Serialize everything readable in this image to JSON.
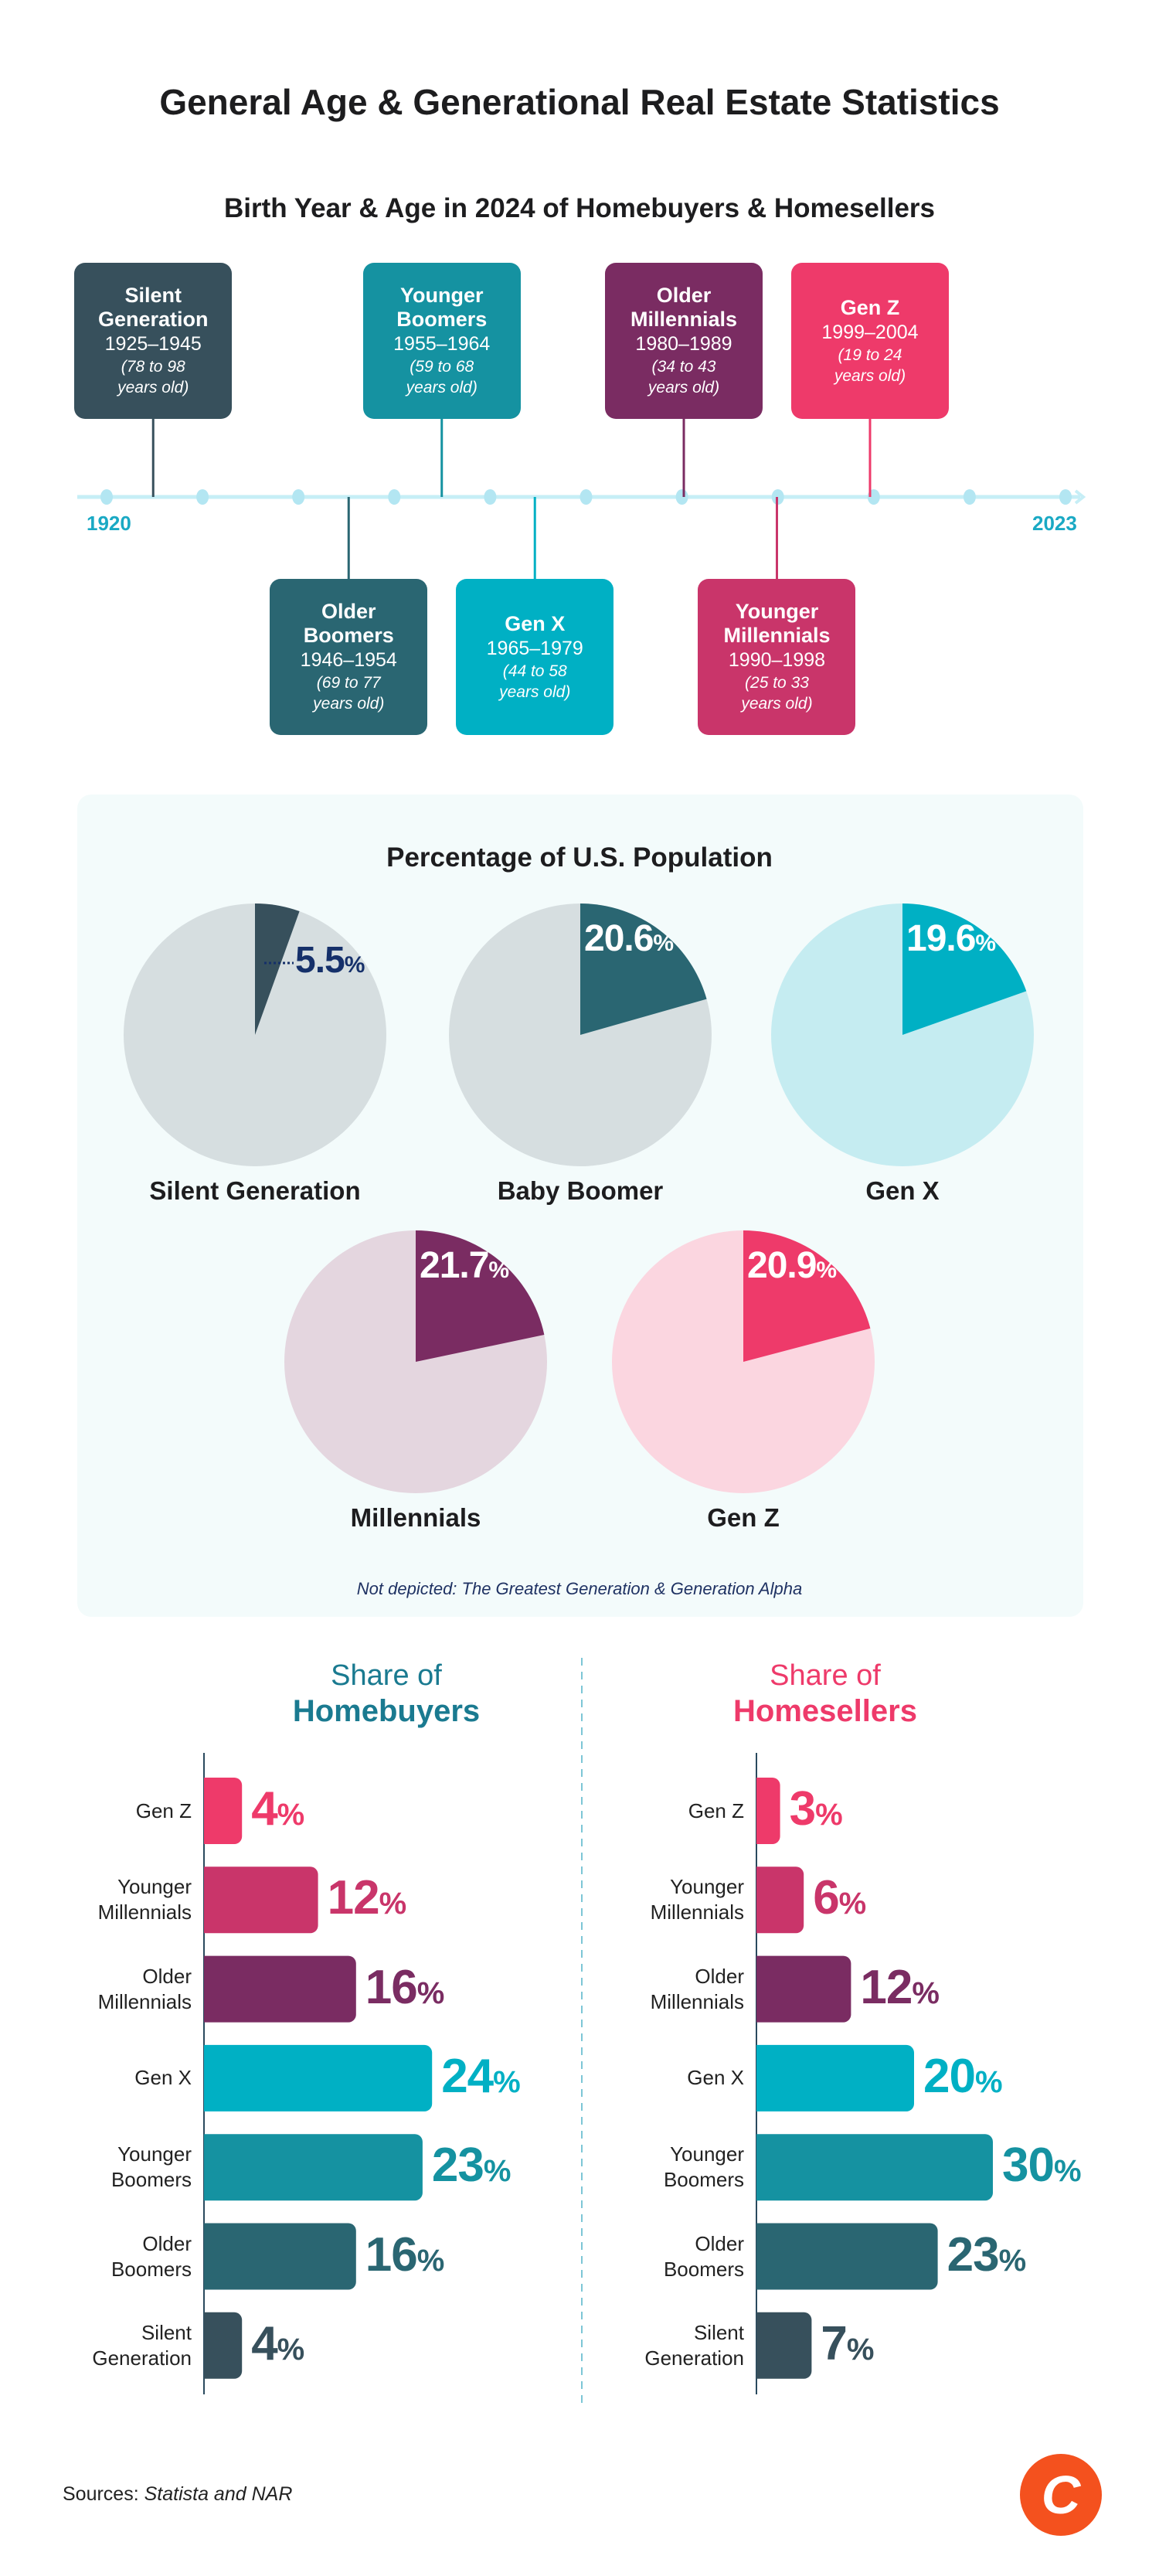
{
  "title": "General Age & Generational Real Estate Statistics",
  "timeline": {
    "title": "Birth Year & Age in 2024 of Homebuyers & Homesellers",
    "start_label": "1920",
    "end_label": "2023",
    "range": [
      1920,
      2023
    ],
    "generations": [
      {
        "name": [
          "Silent",
          "Generation"
        ],
        "years": "1925–1945",
        "ages": [
          "(78 to 98",
          "years old)"
        ],
        "start": 1925,
        "position": "above",
        "color": "#37505c"
      },
      {
        "name": [
          "Older",
          "Boomers"
        ],
        "years": "1946–1954",
        "ages": [
          "(69 to 77",
          "years old)"
        ],
        "start": 1946,
        "position": "below",
        "color": "#2a6672"
      },
      {
        "name": [
          "Younger",
          "Boomers"
        ],
        "years": "1955–1964",
        "ages": [
          "(59 to 68",
          "years old)"
        ],
        "start": 1956,
        "position": "above",
        "color": "#1592a1"
      },
      {
        "name": [
          "Gen X"
        ],
        "years": "1965–1979",
        "ages": [
          "(44 to 58",
          "years old)"
        ],
        "start": 1966,
        "position": "below",
        "color": "#00b0c4"
      },
      {
        "name": [
          "Older",
          "Millennials"
        ],
        "years": "1980–1989",
        "ages": [
          "(34 to 43",
          "years old)"
        ],
        "start": 1982,
        "position": "above",
        "color": "#7a2c62"
      },
      {
        "name": [
          "Younger",
          "Millennials"
        ],
        "years": "1990–1998",
        "ages": [
          "(25 to 33",
          "years old)"
        ],
        "start": 1992,
        "position": "below",
        "color": "#c9356a"
      },
      {
        "name": [
          "Gen Z"
        ],
        "years": "1999–2004",
        "ages": [
          "(19 to 24",
          "years old)"
        ],
        "start": 2002,
        "position": "above",
        "color": "#ee3a6a"
      }
    ]
  },
  "chart_data": [
    {
      "type": "pie",
      "title": "Percentage of U.S. Population",
      "note": "Not depicted: The Greatest Generation & Generation Alpha",
      "pies": [
        {
          "name": "Silent Generation",
          "value": 5.5,
          "label": "5.5",
          "color": "#37505c",
          "bg": "#d6dee0",
          "label_color": "#15306a",
          "label_outside": true
        },
        {
          "name": "Baby Boomer",
          "value": 20.6,
          "label": "20.6",
          "color": "#2a6672",
          "bg": "#d6dee0",
          "label_color": "#ffffff"
        },
        {
          "name": "Gen X",
          "value": 19.6,
          "label": "19.6",
          "color": "#00b0c4",
          "bg": "#c5ecf1",
          "label_color": "#ffffff"
        },
        {
          "name": "Millennials",
          "value": 21.7,
          "label": "21.7",
          "color": "#7a2c62",
          "bg": "#e4d6df",
          "label_color": "#ffffff"
        },
        {
          "name": "Gen Z",
          "value": 20.9,
          "label": "20.9",
          "color": "#ee3a6a",
          "bg": "#fbd6e0",
          "label_color": "#ffffff"
        }
      ]
    },
    {
      "type": "bar",
      "title_line1": "Share of",
      "title_line2": "Homebuyers",
      "title_color": "#1a7a90",
      "categories": [
        [
          "Gen Z"
        ],
        [
          "Younger",
          "Millennials"
        ],
        [
          "Older",
          "Millennials"
        ],
        [
          "Gen X"
        ],
        [
          "Younger",
          "Boomers"
        ],
        [
          "Older",
          "Boomers"
        ],
        [
          "Silent",
          "Generation"
        ]
      ],
      "values": [
        4,
        12,
        16,
        24,
        23,
        16,
        4
      ],
      "colors": [
        "#ee3a6a",
        "#c9356a",
        "#7a2c62",
        "#00b0c4",
        "#1592a1",
        "#2a6672",
        "#37505c"
      ],
      "unit": "%"
    },
    {
      "type": "bar",
      "title_line1": "Share of",
      "title_line2": "Homesellers",
      "title_color": "#ee3a6a",
      "categories": [
        [
          "Gen Z"
        ],
        [
          "Younger",
          "Millennials"
        ],
        [
          "Older",
          "Millennials"
        ],
        [
          "Gen X"
        ],
        [
          "Younger",
          "Boomers"
        ],
        [
          "Older",
          "Boomers"
        ],
        [
          "Silent",
          "Generation"
        ]
      ],
      "values": [
        3,
        6,
        12,
        20,
        30,
        23,
        7
      ],
      "colors": [
        "#ee3a6a",
        "#c9356a",
        "#7a2c62",
        "#00b0c4",
        "#1592a1",
        "#2a6672",
        "#37505c"
      ],
      "unit": "%"
    }
  ],
  "footer": {
    "sources_label": "Sources: ",
    "sources_text": "Statista and NAR",
    "logo_letter": "C",
    "logo_color": "#f4511e"
  }
}
